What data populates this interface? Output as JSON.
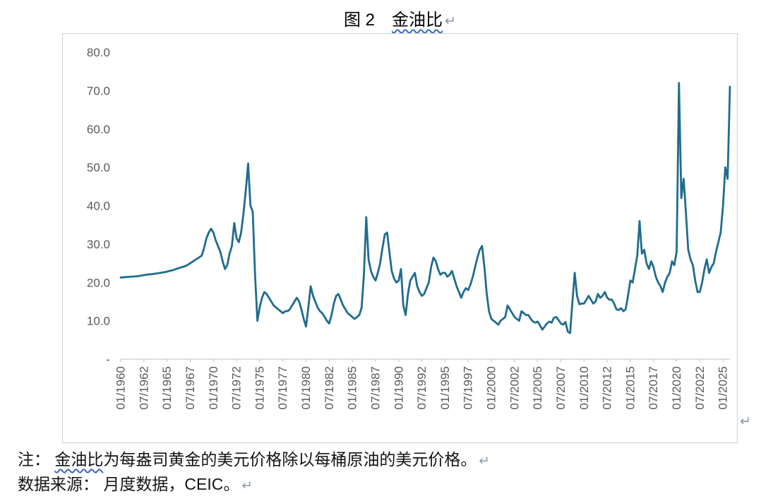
{
  "title": {
    "prefix": "图 2　",
    "highlight": "金油比",
    "return_mark": "↵"
  },
  "chart_return_mark": "↵",
  "notes": [
    {
      "prefix": "注： ",
      "highlight": "金油比",
      "text": "为每盎司黄金的美元价格除以每桶原油的美元价格。",
      "return_mark": "↵"
    },
    {
      "text": "数据来源： 月度数据，CEIC。",
      "return_mark": "↵"
    }
  ],
  "colors": {
    "line": "#1F6C8F",
    "axis_text": "#595959",
    "axis_line": "#BFBFBF",
    "border": "#CFCFCF",
    "squiggle": "#3A66C4",
    "return_mark": "#8A97AD"
  },
  "chart_data": {
    "type": "line",
    "title": "金油比",
    "xlabel": "",
    "ylabel": "",
    "ylim": [
      0,
      80
    ],
    "grid": false,
    "legend": "none",
    "y_tick_values": [
      80,
      70,
      60,
      50,
      40,
      30,
      20,
      10,
      0
    ],
    "y_tick_labels": [
      "80.0",
      "70.0",
      "60.0",
      "50.0",
      "40.0",
      "30.0",
      "20.0",
      "10.0",
      "-"
    ],
    "x_tick_labels": [
      "01/1960",
      "07/1962",
      "01/1965",
      "07/1967",
      "01/1970",
      "07/1972",
      "01/1975",
      "07/1977",
      "01/1980",
      "07/1982",
      "01/1985",
      "07/1987",
      "01/1990",
      "07/1992",
      "01/1995",
      "07/1997",
      "01/2000",
      "07/2002",
      "01/2005",
      "07/2007",
      "01/2010",
      "07/2012",
      "01/2015",
      "07/2017",
      "01/2020",
      "07/2022",
      "01/2025"
    ],
    "x_start": "1960-01",
    "x_step_months": 3,
    "x_tick_step_points": 10,
    "values": [
      21.3,
      21.3,
      21.4,
      21.4,
      21.5,
      21.5,
      21.6,
      21.6,
      21.7,
      21.8,
      21.9,
      22.0,
      22.1,
      22.1,
      22.2,
      22.3,
      22.4,
      22.5,
      22.6,
      22.7,
      22.8,
      23.0,
      23.1,
      23.3,
      23.5,
      23.7,
      23.9,
      24.1,
      24.3,
      24.6,
      25.0,
      25.4,
      25.8,
      26.2,
      26.6,
      27.0,
      29.0,
      31.5,
      33.0,
      34.0,
      33.0,
      31.0,
      29.5,
      28.0,
      25.5,
      23.5,
      24.5,
      27.5,
      29.5,
      35.5,
      31.5,
      30.5,
      33.0,
      38.0,
      44.0,
      51.0,
      40.0,
      38.5,
      22.0,
      10.0,
      13.5,
      16.0,
      17.5,
      17.0,
      16.0,
      15.0,
      14.0,
      13.5,
      13.0,
      12.5,
      12.0,
      12.5,
      12.5,
      13.0,
      14.0,
      15.0,
      16.0,
      15.0,
      13.0,
      10.5,
      8.5,
      13.5,
      19.0,
      16.5,
      15.0,
      13.5,
      12.5,
      12.0,
      11.0,
      10.0,
      9.3,
      11.5,
      14.5,
      16.5,
      17.0,
      15.5,
      14.0,
      13.0,
      12.0,
      11.5,
      11.0,
      10.5,
      11.0,
      11.5,
      13.5,
      22.0,
      37.0,
      26.0,
      23.0,
      21.5,
      20.5,
      22.5,
      25.0,
      29.0,
      32.5,
      33.0,
      28.0,
      23.0,
      21.0,
      20.0,
      20.5,
      23.5,
      14.0,
      11.5,
      17.0,
      20.5,
      21.5,
      22.5,
      19.0,
      17.5,
      16.5,
      17.0,
      18.5,
      20.0,
      24.0,
      26.5,
      25.5,
      23.5,
      22.0,
      22.5,
      22.5,
      21.5,
      22.0,
      23.0,
      21.0,
      19.0,
      17.5,
      16.0,
      17.5,
      18.5,
      18.0,
      19.5,
      21.5,
      24.0,
      26.5,
      28.5,
      29.5,
      24.0,
      17.0,
      12.5,
      10.5,
      10.0,
      9.5,
      9.0,
      10.0,
      10.5,
      11.0,
      14.0,
      13.0,
      12.0,
      11.0,
      10.5,
      10.0,
      12.5,
      12.0,
      11.5,
      11.5,
      10.5,
      9.8,
      9.5,
      9.8,
      8.8,
      7.7,
      8.5,
      9.3,
      9.8,
      9.5,
      10.8,
      11.0,
      10.2,
      9.3,
      9.0,
      9.7,
      7.2,
      6.8,
      15.0,
      22.5,
      16.5,
      14.3,
      14.5,
      14.5,
      15.5,
      16.5,
      15.5,
      14.5,
      15.0,
      17.0,
      16.0,
      16.5,
      17.5,
      16.0,
      15.5,
      15.5,
      14.5,
      13.0,
      12.8,
      13.3,
      12.5,
      13.0,
      16.5,
      20.5,
      20.0,
      23.5,
      27.0,
      36.0,
      27.5,
      28.5,
      25.0,
      23.5,
      25.5,
      24.0,
      21.5,
      20.0,
      19.0,
      17.5,
      20.0,
      21.5,
      22.5,
      25.5,
      24.5,
      28.0,
      72.0,
      42.0,
      47.0,
      38.0,
      28.5,
      26.0,
      24.5,
      20.5,
      17.5,
      17.5,
      20.0,
      23.5,
      26.0,
      22.5,
      24.0,
      25.0,
      28.0,
      30.5,
      33.0,
      40.0,
      50.0,
      47.0,
      71.0
    ]
  }
}
